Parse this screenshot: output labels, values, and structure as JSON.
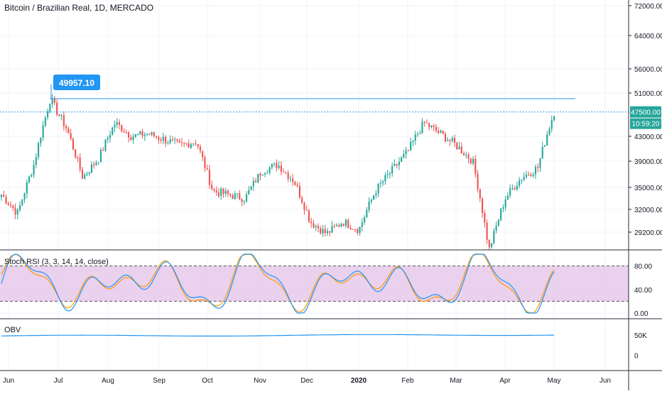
{
  "header": {
    "symbol_title": "Bitcoin / Brazilian Real, 1D, MERCADO"
  },
  "price_pane": {
    "y_ticks": [
      "72000.00",
      "64000.00",
      "56000.00",
      "51000.00",
      "43000.00",
      "39000.00",
      "35000.00",
      "32000.00",
      "29200.00"
    ],
    "last_price_label": "47500.00",
    "countdown_label": "10:59:20",
    "callout_label": "49957.10"
  },
  "stoch_pane": {
    "title": "Stoch RSI (3, 3, 14, 14, close)",
    "y_ticks": [
      "80.00",
      "40.00",
      "0.00"
    ]
  },
  "obv_pane": {
    "title": "OBV",
    "y_ticks": [
      "50K",
      "0"
    ]
  },
  "time_axis": {
    "labels": [
      "Jun",
      "Jul",
      "Aug",
      "Sep",
      "Oct",
      "Nov",
      "Dec",
      "2020",
      "Feb",
      "Mar",
      "Apr",
      "May",
      "Jun"
    ]
  },
  "colors": {
    "up": "#26a69a",
    "down": "#ef5350",
    "accent_blue": "#2196f3",
    "stoch_k": "#2196f3",
    "stoch_d": "#ff9800",
    "stoch_band": "#e1bee7",
    "grid": "#f0f3fa",
    "axis": "#131722"
  },
  "chart_data": {
    "type": "candlestick",
    "title": "Bitcoin / Brazilian Real, 1D, MERCADO",
    "price_close_series": {
      "x": [
        "Jun-01",
        "Jun-10",
        "Jun-20",
        "Jun-26",
        "Jul-05",
        "Jul-15",
        "Jul-25",
        "Aug-01",
        "Aug-10",
        "Aug-20",
        "Sep-01",
        "Sep-10",
        "Sep-20",
        "Oct-01",
        "Oct-10",
        "Oct-20",
        "Nov-01",
        "Nov-10",
        "Nov-20",
        "Dec-01",
        "Dec-10",
        "Dec-20",
        "Jan-01",
        "Jan-10",
        "Jan-20",
        "Feb-01",
        "Feb-10",
        "Feb-20",
        "Mar-01",
        "Mar-10",
        "Mar-20",
        "Apr-01",
        "Apr-10",
        "Apr-20",
        "Apr-30"
      ],
      "values": [
        34000,
        31500,
        38500,
        49900,
        44500,
        36500,
        39500,
        45500,
        43000,
        43500,
        42500,
        41500,
        42200,
        34500,
        34000,
        33500,
        37500,
        38500,
        36000,
        30500,
        29000,
        30500,
        29500,
        34500,
        37500,
        40500,
        45500,
        43500,
        41500,
        39000,
        27000,
        33500,
        36500,
        38000,
        47500
      ]
    },
    "reference_lines": [
      {
        "label": "49957.10",
        "value": 49957.1
      },
      {
        "label": "47500.00",
        "value": 47500
      }
    ],
    "y_axis_range": [
      27500,
      75000
    ],
    "stoch_rsi": {
      "name": "Stoch RSI (3, 3, 14, 14, close)",
      "upper_band": 80,
      "lower_band": 20,
      "range": [
        0,
        100
      ]
    },
    "obv": {
      "name": "OBV",
      "range": [
        -20000,
        80000
      ],
      "level": 48000
    }
  }
}
